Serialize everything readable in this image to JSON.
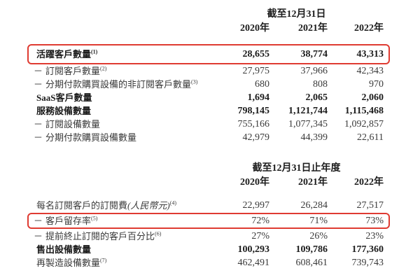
{
  "page": {
    "background": "#ffffff",
    "text_color": "#3a3a3a",
    "highlight_border_color": "#df3b32"
  },
  "dash_prefix": "－",
  "tables": [
    {
      "period_header": "截至12月31日",
      "years": [
        "2020年",
        "2021年",
        "2022年"
      ],
      "rows": [
        {
          "label": "活躍客戶數量",
          "sup": "(1)",
          "values": [
            "28,655",
            "38,774",
            "43,313"
          ],
          "bold": true,
          "highlight": true
        },
        {
          "label": "訂閱客戶數量",
          "sup": "(2)",
          "dash": true,
          "values": [
            "27,975",
            "37,966",
            "42,343"
          ]
        },
        {
          "label": "分期付款購買設備的非訂閱客戶數量",
          "sup": "(3)",
          "dash": true,
          "values": [
            "680",
            "808",
            "970"
          ]
        },
        {
          "label": "SaaS客戶數量",
          "values": [
            "1,694",
            "2,065",
            "2,060"
          ],
          "bold": true
        },
        {
          "label": "服務設備數量",
          "values": [
            "798,145",
            "1,121,744",
            "1,115,468"
          ],
          "bold": true
        },
        {
          "label": "訂閱設備數量",
          "dash": true,
          "values": [
            "755,166",
            "1,077,345",
            "1,092,857"
          ]
        },
        {
          "label": "分期付款購買設備數量",
          "dash": true,
          "values": [
            "42,979",
            "44,399",
            "22,611"
          ]
        }
      ]
    },
    {
      "period_header": "截至12月31日止年度",
      "years": [
        "2020年",
        "2021年",
        "2022年"
      ],
      "rows": [
        {
          "label": "每名訂閱客戶的訂閱費",
          "note": "(人民幣元)",
          "sup": "(4)",
          "values": [
            "22,997",
            "26,284",
            "27,517"
          ]
        },
        {
          "label": "客戶留存率",
          "sup": "(5)",
          "dash": true,
          "values": [
            "72%",
            "71%",
            "73%"
          ],
          "highlight": true
        },
        {
          "label": "提前終止訂閱的客戶百分比",
          "sup": "(6)",
          "dash": true,
          "values": [
            "27%",
            "26%",
            "23%"
          ]
        },
        {
          "label": "售出設備數量",
          "values": [
            "100,293",
            "109,786",
            "177,360"
          ],
          "bold": true
        },
        {
          "label": "再製造設備數量",
          "sup": "(7)",
          "values": [
            "462,491",
            "608,461",
            "739,743"
          ]
        }
      ]
    }
  ]
}
